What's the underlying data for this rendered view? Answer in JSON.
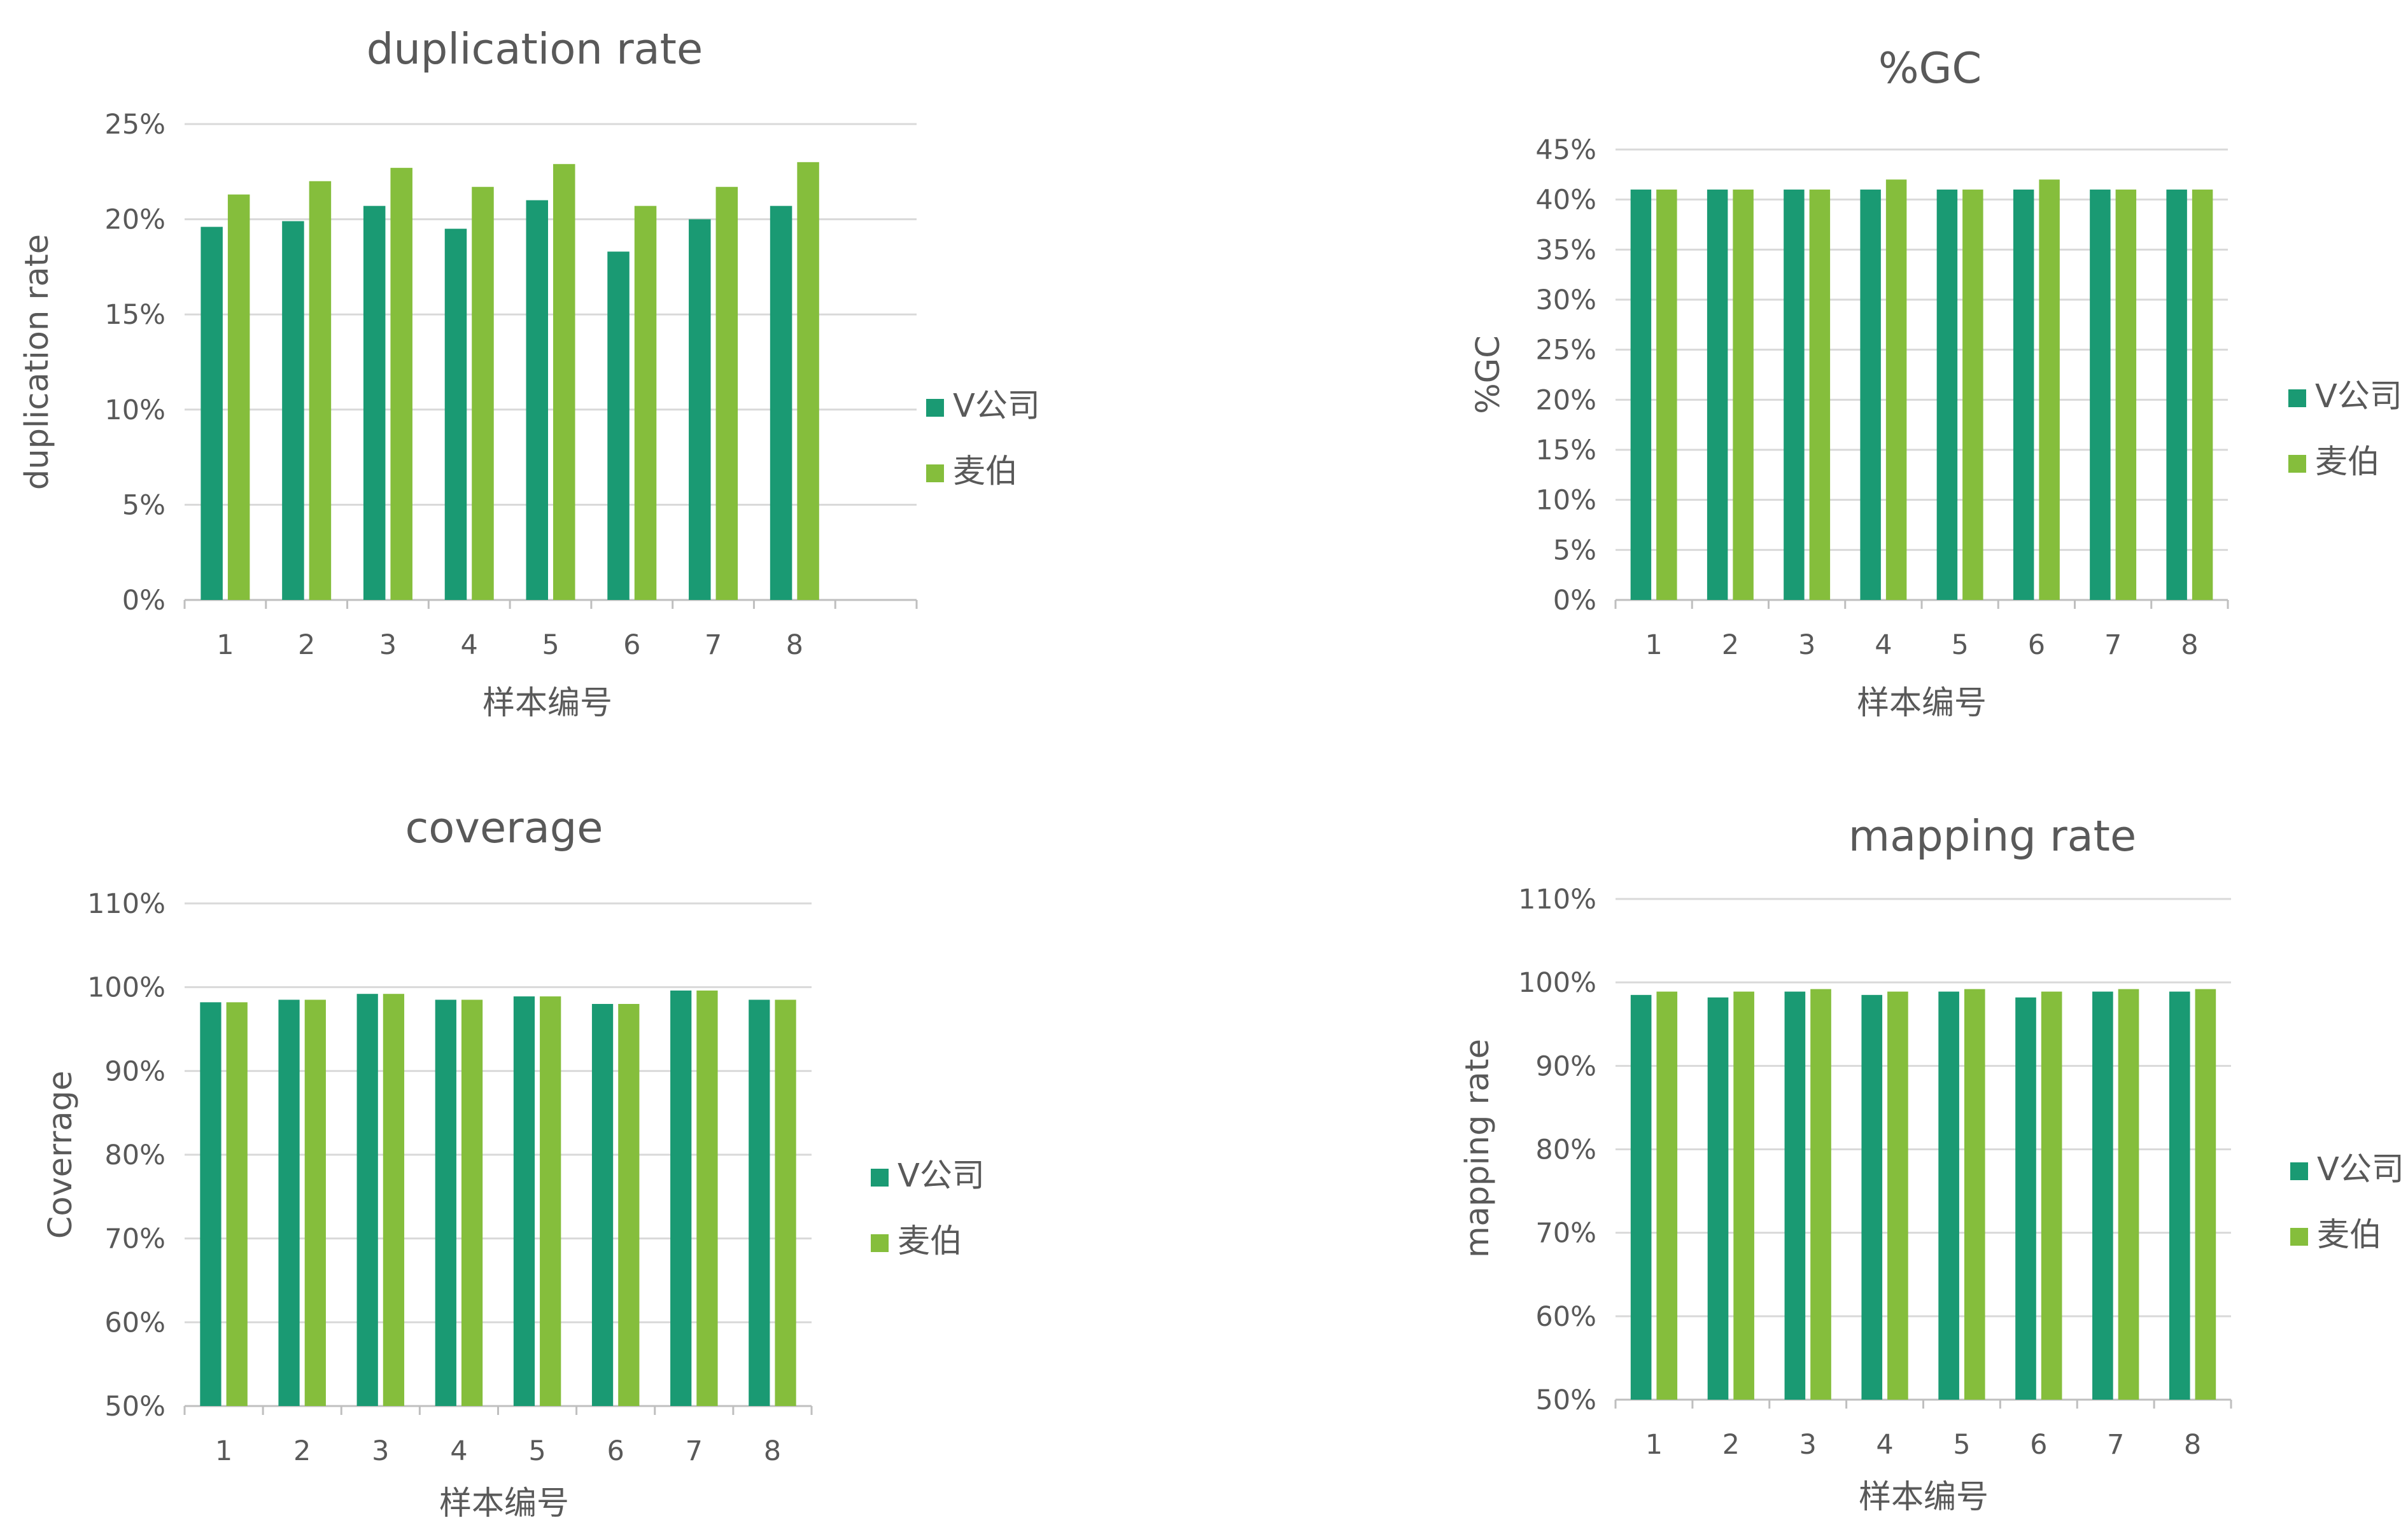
{
  "colors": {
    "v_company": "#1a9a73",
    "maibo": "#85be3c"
  },
  "chart_data": [
    {
      "type": "bar",
      "title": "duplication rate",
      "xlabel": "样本编号",
      "ylabel": "duplication rate",
      "categories": [
        "1",
        "2",
        "3",
        "4",
        "5",
        "6",
        "7",
        "8"
      ],
      "yticks": [
        "0%",
        "5%",
        "10%",
        "15%",
        "20%",
        "25%"
      ],
      "ylim": [
        0,
        25
      ],
      "series": [
        {
          "name": "V公司",
          "values": [
            19.6,
            19.9,
            20.7,
            19.5,
            21.0,
            18.3,
            20.0,
            20.7
          ]
        },
        {
          "name": "麦伯",
          "values": [
            21.3,
            22.0,
            22.7,
            21.7,
            22.9,
            20.7,
            21.7,
            23.0
          ]
        }
      ],
      "grid": true,
      "legend": "right"
    },
    {
      "type": "bar",
      "title": "%GC",
      "xlabel": "样本编号",
      "ylabel": "%GC",
      "categories": [
        "1",
        "2",
        "3",
        "4",
        "5",
        "6",
        "7",
        "8"
      ],
      "yticks": [
        "0%",
        "5%",
        "10%",
        "15%",
        "20%",
        "25%",
        "30%",
        "35%",
        "40%",
        "45%"
      ],
      "ylim": [
        0,
        45
      ],
      "series": [
        {
          "name": "V公司",
          "values": [
            41,
            41,
            41,
            41,
            41,
            41,
            41,
            41
          ]
        },
        {
          "name": "麦伯",
          "values": [
            41,
            41,
            41,
            42,
            41,
            42,
            41,
            41
          ]
        }
      ],
      "grid": true,
      "legend": "right"
    },
    {
      "type": "bar",
      "title": "coverage",
      "xlabel": "样本编号",
      "ylabel": "Coverrage",
      "categories": [
        "1",
        "2",
        "3",
        "4",
        "5",
        "6",
        "7",
        "8"
      ],
      "yticks": [
        "50%",
        "60%",
        "70%",
        "80%",
        "90%",
        "100%",
        "110%"
      ],
      "ylim": [
        50,
        110
      ],
      "series": [
        {
          "name": "V公司",
          "values": [
            98.2,
            98.5,
            99.2,
            98.5,
            98.9,
            98.0,
            99.6,
            98.5
          ]
        },
        {
          "name": "麦伯",
          "values": [
            98.2,
            98.5,
            99.2,
            98.5,
            98.9,
            98.0,
            99.6,
            98.5
          ]
        }
      ],
      "grid": true,
      "legend": "right"
    },
    {
      "type": "bar",
      "title": "mapping rate",
      "xlabel": "样本编号",
      "ylabel": "mapping rate",
      "categories": [
        "1",
        "2",
        "3",
        "4",
        "5",
        "6",
        "7",
        "8"
      ],
      "yticks": [
        "50%",
        "60%",
        "70%",
        "80%",
        "90%",
        "100%",
        "110%"
      ],
      "ylim": [
        50,
        110
      ],
      "series": [
        {
          "name": "V公司",
          "values": [
            98.5,
            98.2,
            98.9,
            98.5,
            98.9,
            98.2,
            98.9,
            98.9
          ]
        },
        {
          "name": "麦伯",
          "values": [
            98.9,
            98.9,
            99.2,
            98.9,
            99.2,
            98.9,
            99.2,
            99.2
          ]
        }
      ],
      "grid": true,
      "legend": "right"
    }
  ]
}
